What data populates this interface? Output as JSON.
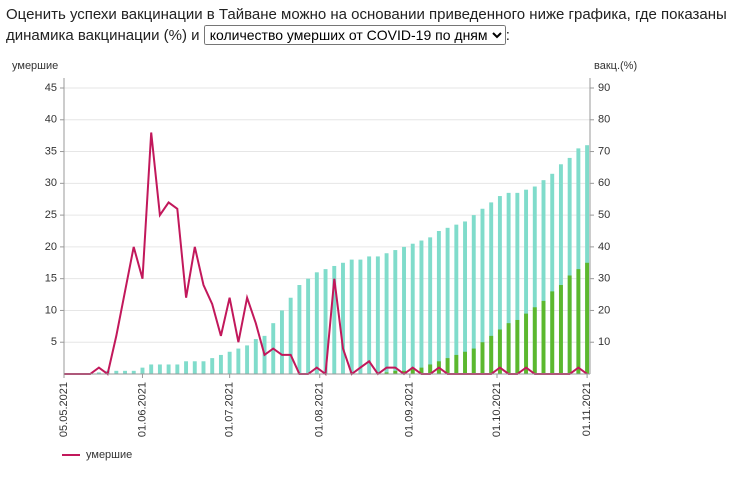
{
  "header": {
    "text": "Оценить успехи вакцинации в Тайване можно на основании приведенного ниже графика, где показаны динамика вакцинации (%) и",
    "select_option": "количество умерших от COVID-19 по дням",
    "text_end": ":"
  },
  "chart_data": {
    "type": "combo",
    "y_label": "умершие",
    "y2_label": "вакц.(%)",
    "x": [
      "05.05.2021",
      "08.05.2021",
      "11.05.2021",
      "14.05.2021",
      "17.05.2021",
      "20.05.2021",
      "23.05.2021",
      "26.05.2021",
      "29.05.2021",
      "01.06.2021",
      "04.06.2021",
      "07.06.2021",
      "10.06.2021",
      "13.06.2021",
      "16.06.2021",
      "19.06.2021",
      "22.06.2021",
      "25.06.2021",
      "28.06.2021",
      "01.07.2021",
      "04.07.2021",
      "07.07.2021",
      "10.07.2021",
      "13.07.2021",
      "16.07.2021",
      "19.07.2021",
      "22.07.2021",
      "25.07.2021",
      "28.07.2021",
      "31.07.2021",
      "03.08.2021",
      "06.08.2021",
      "09.08.2021",
      "12.08.2021",
      "15.08.2021",
      "18.08.2021",
      "21.08.2021",
      "24.08.2021",
      "27.08.2021",
      "30.08.2021",
      "02.09.2021",
      "05.09.2021",
      "08.09.2021",
      "11.09.2021",
      "14.09.2021",
      "17.09.2021",
      "20.09.2021",
      "23.09.2021",
      "26.09.2021",
      "29.09.2021",
      "02.10.2021",
      "05.10.2021",
      "08.10.2021",
      "11.10.2021",
      "14.10.2021",
      "17.10.2021",
      "20.10.2021",
      "23.10.2021",
      "26.10.2021",
      "29.10.2021",
      "01.11.2021"
    ],
    "xlim": [
      "05.05.2021",
      "02.11.2021"
    ],
    "xticks": [
      "05.05.2021",
      "01.06.2021",
      "01.07.2021",
      "01.08.2021",
      "01.09.2021",
      "01.10.2021",
      "01.11.2021"
    ],
    "ylim": [
      0,
      45
    ],
    "yticks": [
      5,
      10,
      15,
      20,
      25,
      30,
      35,
      40,
      45
    ],
    "y2lim": [
      0,
      90
    ],
    "y2ticks": [
      10,
      20,
      30,
      40,
      50,
      60,
      70,
      80,
      90
    ],
    "grid": true,
    "series": [
      {
        "type": "bar",
        "axis": "y2",
        "color": "#80dccb",
        "values": [
          0,
          0,
          0,
          0,
          0.5,
          1,
          1,
          1,
          1,
          2,
          3,
          3,
          3,
          3,
          4,
          4,
          4,
          5,
          6,
          7,
          8,
          9,
          11,
          12,
          16,
          20,
          24,
          28,
          30,
          32,
          33,
          34,
          35,
          36,
          36,
          37,
          37,
          38,
          39,
          40,
          41,
          42,
          43,
          45,
          46,
          47,
          48,
          50,
          52,
          54,
          56,
          57,
          57,
          58,
          59,
          61,
          63,
          66,
          68,
          71,
          72
        ]
      },
      {
        "type": "bar",
        "axis": "y2",
        "color": "#5cb82e",
        "values": [
          0,
          0,
          0,
          0,
          0,
          0,
          0,
          0,
          0,
          0,
          0,
          0,
          0,
          0,
          0,
          0,
          0,
          0,
          0,
          0,
          0,
          0,
          0,
          0,
          0,
          0,
          0,
          0,
          0,
          0,
          0,
          0,
          0,
          0,
          0,
          0,
          0,
          0.5,
          1,
          1,
          2,
          2,
          3,
          4,
          5,
          6,
          7,
          8,
          10,
          12,
          14,
          16,
          17,
          19,
          21,
          23,
          26,
          28,
          31,
          33,
          35
        ]
      },
      {
        "name": "умершие",
        "type": "line",
        "color": "#c2185b",
        "values": [
          0,
          0,
          0,
          0,
          1,
          0,
          6,
          13,
          20,
          15,
          38,
          25,
          27,
          26,
          12,
          20,
          14,
          11,
          6,
          12,
          5,
          12,
          8,
          3,
          4,
          3,
          3,
          0,
          0,
          1,
          0,
          15,
          4,
          0,
          1,
          2,
          0,
          1,
          1,
          0,
          1,
          0,
          0,
          1,
          0,
          0,
          0,
          0,
          0,
          0,
          1,
          0,
          0,
          1,
          0,
          0,
          0,
          0,
          0,
          1,
          0
        ]
      }
    ]
  }
}
